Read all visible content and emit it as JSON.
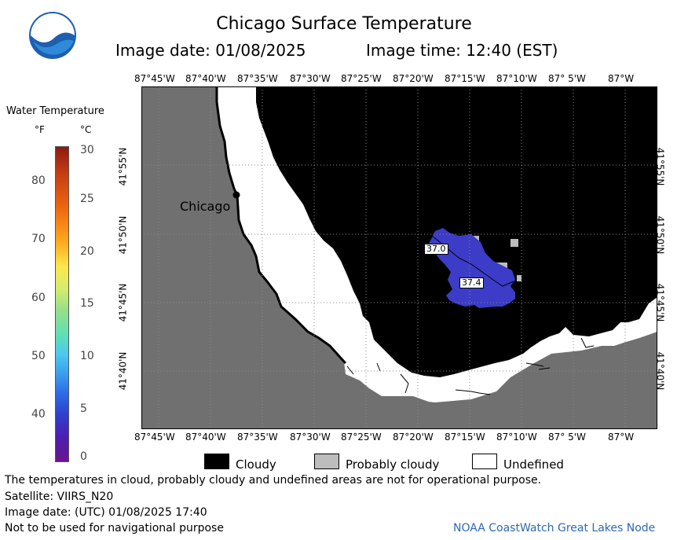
{
  "header": {
    "logo_text": "NOAA",
    "title": "Chicago Surface Temperature",
    "image_date": "Image date: 01/08/2025",
    "image_time": "Image time: 12:40 (EST)"
  },
  "map": {
    "lon_labels": [
      "87°45'W",
      "87°40'W",
      "87°35'W",
      "87°30'W",
      "87°25'W",
      "87°20'W",
      "87°15'W",
      "87°10'W",
      "87° 5'W",
      "87°W"
    ],
    "lat_labels": [
      "41°55'N",
      "41°50'N",
      "41°45'N",
      "41°40'N"
    ],
    "city_label": "Chicago",
    "point_labels": [
      "37.0",
      "37.4"
    ],
    "colors": {
      "land": "#707070",
      "cloudy": "#000000",
      "probably_cloudy": "#bdbdbd",
      "undefined": "#ffffff",
      "water": "#3c3cc8"
    }
  },
  "legend": {
    "title": "Water Temperature",
    "unit_f": "°F",
    "unit_c": "°C",
    "f_ticks": [
      "80",
      "70",
      "60",
      "50",
      "40"
    ],
    "c_ticks": [
      "30",
      "25",
      "20",
      "15",
      "10",
      "5",
      "0"
    ]
  },
  "key": {
    "cloudy": "Cloudy",
    "probably_cloudy": "Probably cloudy",
    "undefined": "Undefined"
  },
  "footer": {
    "disclaimer": "The temperatures in cloud, probably cloudy and undefined areas are not for operational purpose.",
    "satellite": "Satellite: VIIRS_N20",
    "utc_date": "Image date: (UTC) 01/08/2025  17:40",
    "nav_warning": "Not to be used for navigational purpose",
    "credit": "NOAA CoastWatch Great Lakes Node"
  }
}
